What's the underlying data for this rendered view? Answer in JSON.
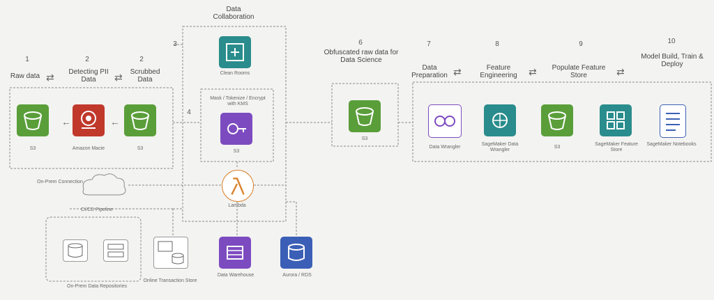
{
  "steps": {
    "n1": "1",
    "raw_data": "Raw data",
    "n2": "2",
    "detecting_pii": "Detecting PII Data",
    "n2b": "2",
    "scrubbed_data": "Scrubbed Data",
    "n3": "3",
    "n4": "4",
    "data_collaboration": "Data Collaboration",
    "n6": "6",
    "obfuscated": "Obfuscated raw data for Data Science",
    "n7": "7",
    "data_preparation": "Data Preparation",
    "n8": "8",
    "feature_engineering": "Feature Engineering",
    "n9": "9",
    "feature_store": "Populate Feature Store",
    "n10": "10",
    "model_build": "Model Build, Train & Deploy"
  },
  "services": {
    "s3_left": "S3",
    "macie": "Amazon Macie",
    "s3_scrubbed": "S3",
    "clean_rooms": "Clean Rooms",
    "mask_note": "Mask / Tokenize / Encrypt with KMS",
    "s3_obf": "S3",
    "lambda": "Lambda",
    "s3_ds": "S3",
    "sm_data_wrangler": "Data Wrangler",
    "sm_processing": "SageMaker Data Wrangler",
    "s3_fs": "S3",
    "feature_store": "SageMaker Feature Store",
    "notebooks": "SageMaker Notebooks",
    "data_warehouse": "Data Warehouse",
    "aurora": "Aurora / RDS",
    "cicd": "CI/CD Pipeline",
    "on_prem_store": "On-Prem Data Store",
    "on_prem_cloud": "On-Prem Connection",
    "rds_store": "Online Transaction Store",
    "on_prem_label": "On-Prem Data Repositories"
  },
  "colors": {
    "green": "#5a9e3a",
    "red": "#c0392b",
    "purple": "#7d4bc0",
    "teal": "#2a8c8c",
    "blue": "#3b5fb6",
    "orange": "#d9822b",
    "line": "#8a8a8a"
  }
}
